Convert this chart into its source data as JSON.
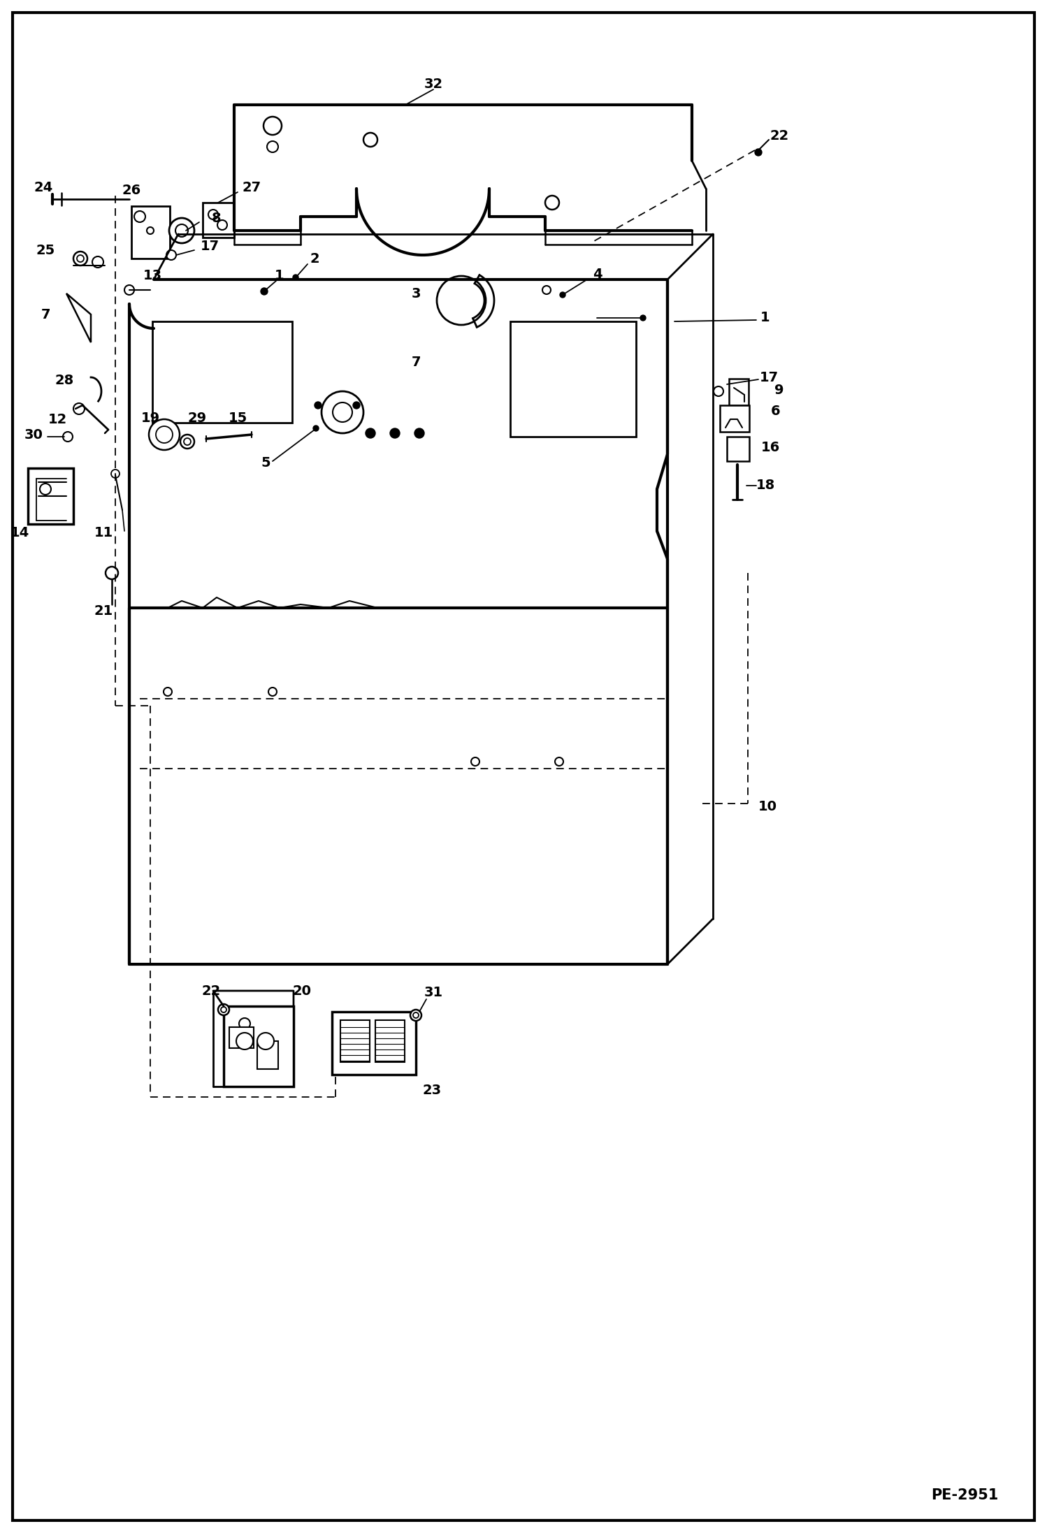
{
  "bg_color": "#ffffff",
  "border_color": "#000000",
  "line_color": "#000000",
  "label_color": "#000000",
  "figsize": [
    14.98,
    21.94
  ],
  "dpi": 100,
  "diagram_id": "PE-2951"
}
